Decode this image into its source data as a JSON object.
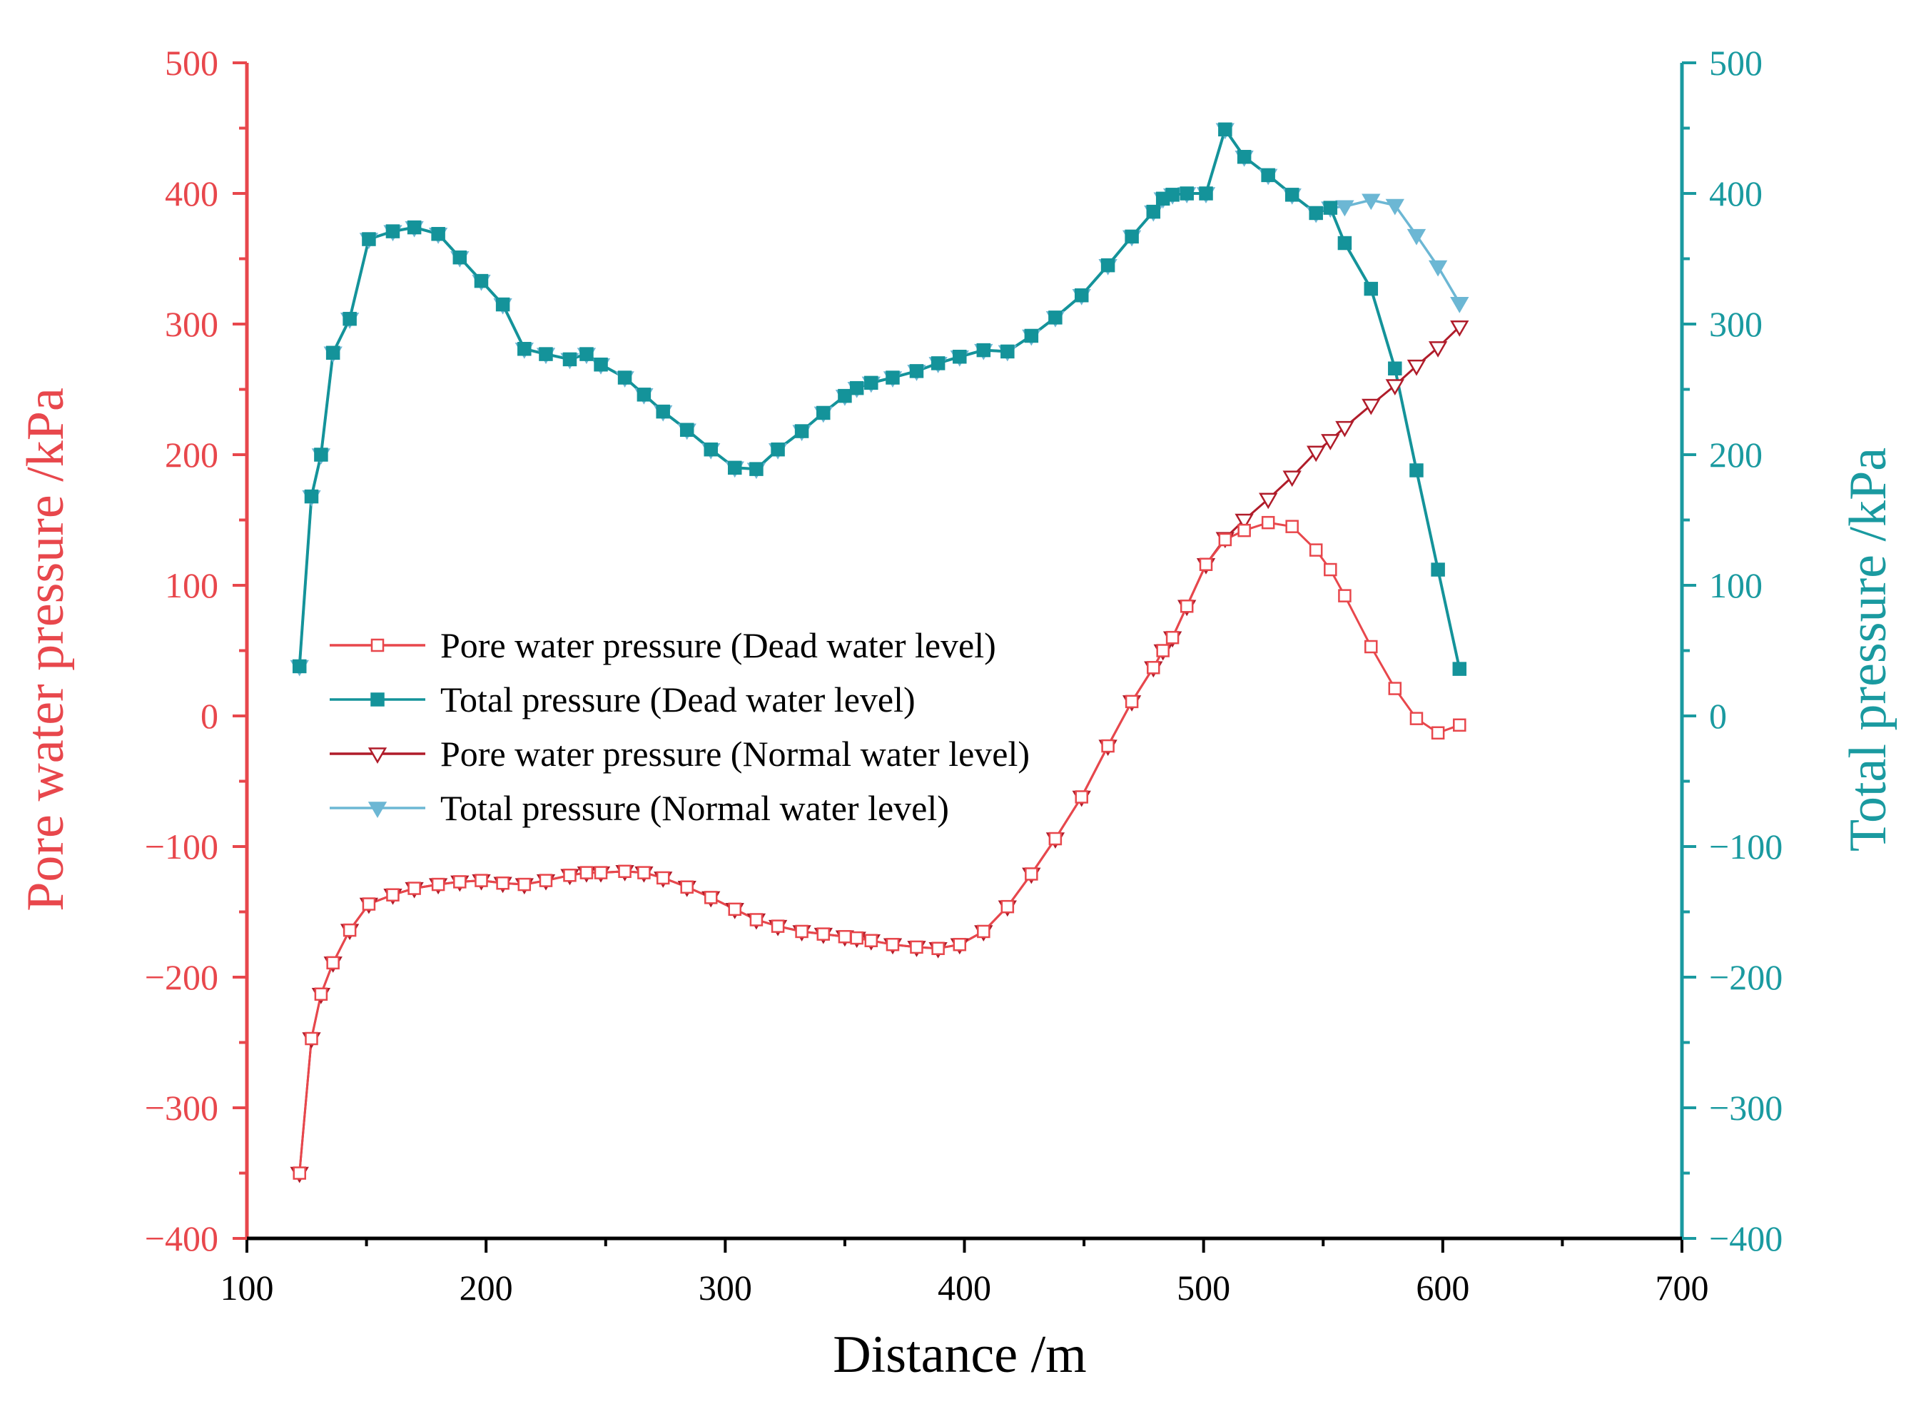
{
  "colors": {
    "left_axis": "#E8474C",
    "right_axis": "#1A9AA0",
    "bottom_axis": "#000000",
    "pore_dead": "#E8474C",
    "total_dead": "#14939A",
    "pore_normal": "#B01C2A",
    "total_normal": "#6CB7D4"
  },
  "chart_data": {
    "type": "line",
    "xlabel": "Distance /m",
    "ylabel_left": "Pore water pressure /kPa",
    "ylabel_right": "Total pressure /kPa",
    "xlim": [
      100,
      700
    ],
    "ylim_left": [
      -400,
      500
    ],
    "ylim_right": [
      -400,
      500
    ],
    "x_ticks": [
      "100",
      "200",
      "300",
      "400",
      "500",
      "600",
      "700"
    ],
    "y_ticks_left": [
      "500",
      "400",
      "300",
      "200",
      "100",
      "0",
      "−100",
      "−200",
      "−300",
      "−400"
    ],
    "y_ticks_right": [
      "500",
      "400",
      "300",
      "200",
      "100",
      "0",
      "−100",
      "−200",
      "−300",
      "−400"
    ],
    "legend_position": "center-left",
    "series": [
      {
        "name": "Pore water pressure (Dead water level)",
        "axis": "left",
        "marker": "open-square",
        "color_key": "pore_dead",
        "x": [
          122,
          127,
          131,
          136,
          143,
          151,
          161,
          170,
          180,
          189,
          198,
          207,
          216,
          225,
          235,
          242,
          248,
          258,
          266,
          274,
          284,
          294,
          304,
          313,
          322,
          332,
          341,
          350,
          355,
          361,
          370,
          380,
          389,
          398,
          408,
          418,
          428,
          438,
          449,
          460,
          470,
          479,
          483,
          487,
          493,
          501,
          509,
          517,
          527,
          537,
          547,
          553,
          559,
          570,
          580,
          589,
          598,
          607
        ],
        "values": [
          -350,
          -247,
          -213,
          -189,
          -164,
          -144,
          -137,
          -132,
          -129,
          -127,
          -126,
          -128,
          -129,
          -126,
          -122,
          -120,
          -120,
          -119,
          -120,
          -124,
          -131,
          -139,
          -148,
          -156,
          -161,
          -165,
          -167,
          -169,
          -170,
          -172,
          -175,
          -177,
          -178,
          -175,
          -165,
          -146,
          -121,
          -94,
          -62,
          -23,
          11,
          37,
          50,
          60,
          84,
          116,
          135,
          142,
          148,
          145,
          127,
          112,
          92,
          53,
          21,
          -2,
          -13,
          -7
        ]
      },
      {
        "name": "Total pressure (Dead water level)",
        "axis": "right",
        "marker": "filled-square",
        "color_key": "total_dead",
        "x": [
          122,
          127,
          131,
          136,
          143,
          151,
          161,
          170,
          180,
          189,
          198,
          207,
          216,
          225,
          235,
          242,
          248,
          258,
          266,
          274,
          284,
          294,
          304,
          313,
          322,
          332,
          341,
          350,
          355,
          361,
          370,
          380,
          389,
          398,
          408,
          418,
          428,
          438,
          449,
          460,
          470,
          479,
          483,
          487,
          493,
          501,
          509,
          517,
          527,
          537,
          547,
          553,
          559,
          570,
          580,
          589,
          598,
          607
        ],
        "values": [
          38,
          168,
          200,
          278,
          304,
          365,
          371,
          374,
          369,
          351,
          333,
          315,
          281,
          277,
          273,
          277,
          269,
          259,
          246,
          233,
          219,
          204,
          190,
          189,
          204,
          218,
          232,
          245,
          251,
          255,
          259,
          264,
          270,
          275,
          280,
          279,
          291,
          305,
          322,
          345,
          367,
          386,
          396,
          399,
          400,
          400,
          449,
          428,
          414,
          399,
          385,
          389,
          362,
          327,
          266,
          188,
          112,
          36
        ]
      },
      {
        "name": "Pore water pressure (Normal water level)",
        "axis": "left",
        "marker": "open-triangle-down",
        "color_key": "pore_normal",
        "x": [
          122,
          127,
          131,
          136,
          143,
          151,
          161,
          170,
          180,
          189,
          198,
          207,
          216,
          225,
          235,
          242,
          248,
          258,
          266,
          274,
          284,
          294,
          304,
          313,
          322,
          332,
          341,
          350,
          355,
          361,
          370,
          380,
          389,
          398,
          408,
          418,
          428,
          438,
          449,
          460,
          470,
          479,
          483,
          487,
          493,
          501,
          509,
          517,
          527,
          537,
          547,
          553,
          559,
          570,
          580,
          589,
          598,
          607
        ],
        "values": [
          -350,
          -247,
          -213,
          -189,
          -164,
          -144,
          -137,
          -132,
          -129,
          -127,
          -126,
          -128,
          -129,
          -126,
          -122,
          -120,
          -120,
          -119,
          -120,
          -124,
          -131,
          -139,
          -148,
          -156,
          -161,
          -165,
          -167,
          -169,
          -170,
          -172,
          -175,
          -177,
          -178,
          -175,
          -165,
          -146,
          -121,
          -94,
          -62,
          -23,
          11,
          37,
          50,
          60,
          84,
          116,
          136,
          150,
          166,
          183,
          202,
          211,
          221,
          238,
          253,
          268,
          282,
          298
        ]
      },
      {
        "name": "Total pressure (Normal water level)",
        "axis": "right",
        "marker": "filled-triangle-down",
        "color_key": "total_normal",
        "x": [
          122,
          127,
          131,
          136,
          143,
          151,
          161,
          170,
          180,
          189,
          198,
          207,
          216,
          225,
          235,
          242,
          248,
          258,
          266,
          274,
          284,
          294,
          304,
          313,
          322,
          332,
          341,
          350,
          355,
          361,
          370,
          380,
          389,
          398,
          408,
          418,
          428,
          438,
          449,
          460,
          470,
          479,
          483,
          487,
          493,
          501,
          509,
          517,
          527,
          537,
          547,
          553,
          559,
          570,
          580,
          589,
          598,
          607
        ],
        "values": [
          38,
          168,
          200,
          278,
          304,
          365,
          371,
          374,
          369,
          351,
          333,
          315,
          281,
          277,
          273,
          277,
          269,
          259,
          246,
          233,
          219,
          204,
          190,
          189,
          204,
          218,
          232,
          245,
          251,
          255,
          259,
          264,
          270,
          275,
          280,
          279,
          291,
          305,
          322,
          345,
          367,
          386,
          396,
          399,
          400,
          400,
          449,
          428,
          414,
          399,
          385,
          389,
          390,
          395,
          391,
          368,
          344,
          316
        ]
      }
    ]
  }
}
